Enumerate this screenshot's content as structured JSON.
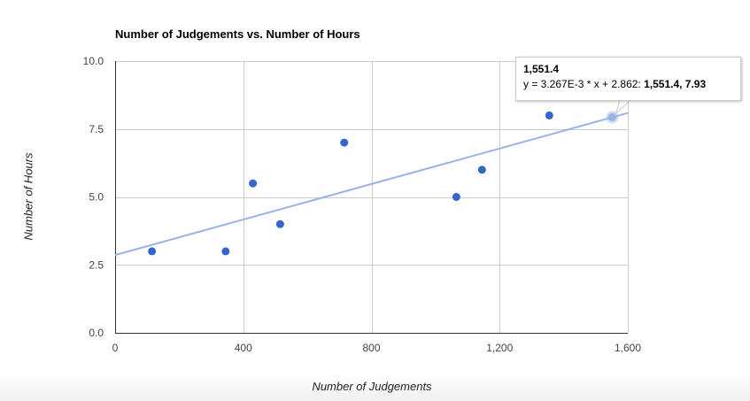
{
  "chart_data": {
    "type": "scatter",
    "title": "Number of Judgements vs. Number of Hours",
    "xlabel": "Number of Judgements",
    "ylabel": "Number of Hours",
    "xlim": [
      0,
      1600
    ],
    "ylim": [
      0,
      10
    ],
    "x_ticks": [
      "0",
      "400",
      "800",
      "1,200",
      "1,600"
    ],
    "y_ticks": [
      "0.0",
      "2.5",
      "5.0",
      "7.5",
      "10.0"
    ],
    "x_tick_values": [
      0,
      400,
      800,
      1200,
      1600
    ],
    "y_tick_values": [
      0,
      2.5,
      5,
      7.5,
      10
    ],
    "grid": true,
    "points": [
      {
        "x": 115,
        "y": 3
      },
      {
        "x": 345,
        "y": 3
      },
      {
        "x": 430,
        "y": 5.5
      },
      {
        "x": 515,
        "y": 4
      },
      {
        "x": 715,
        "y": 7
      },
      {
        "x": 1065,
        "y": 5
      },
      {
        "x": 1145,
        "y": 6
      },
      {
        "x": 1355,
        "y": 8
      }
    ],
    "trendline": {
      "slope": 0.003267,
      "intercept": 2.862,
      "equation": "y = 3.267E-3 * x + 2.862"
    },
    "highlight_point": {
      "x": 1551.4,
      "y": 7.93
    }
  },
  "colors": {
    "points": "#3366cc",
    "trendline": "#99b3e6",
    "grid": "#cccccc",
    "axis": "#333333"
  },
  "tooltip": {
    "title": "1,551.4",
    "equation_prefix": "y = 3.267E-3 * x + 2.862: ",
    "value": "1,551.4, 7.93"
  }
}
